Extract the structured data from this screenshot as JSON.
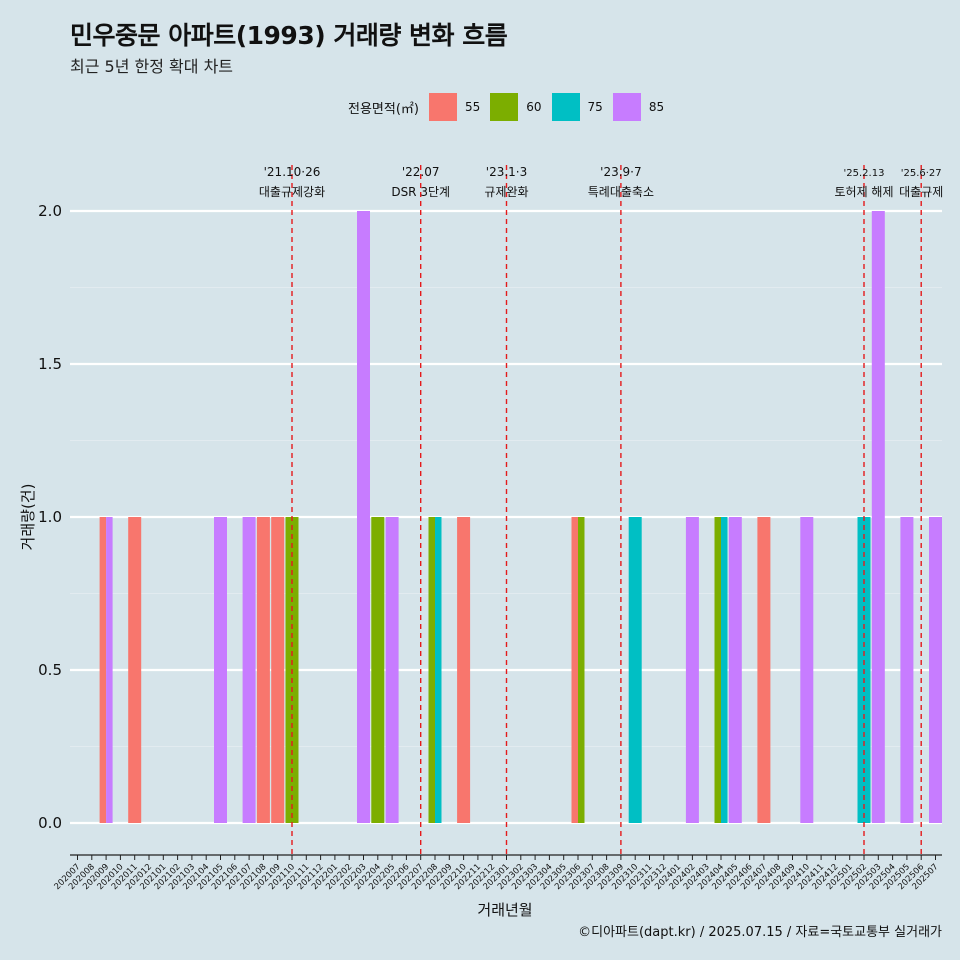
{
  "title": "민우중문 아파트(1993) 거래량 변화 흐름",
  "subtitle": "최근 5년 한정 확대 차트",
  "caption": "©디아파트(dapt.kr) / 2025.07.15 / 자료=국토교통부 실거래가",
  "legend": {
    "title": "전용면적(㎡)",
    "items": [
      {
        "label": "55",
        "color": "#f8766d"
      },
      {
        "label": "60",
        "color": "#7cae00"
      },
      {
        "label": "75",
        "color": "#00bfc4"
      },
      {
        "label": "85",
        "color": "#c77cff"
      }
    ]
  },
  "chart_data": {
    "type": "bar",
    "xlabel": "거래년월",
    "ylabel": "거래량(건)",
    "ylim": [
      0,
      2
    ],
    "yticks": [
      "0.0",
      "0.5",
      "1.0",
      "1.5",
      "2.0"
    ],
    "grid": true,
    "legend_position": "top",
    "categories": [
      "202007",
      "202008",
      "202009",
      "202010",
      "202011",
      "202012",
      "202101",
      "202102",
      "202103",
      "202104",
      "202105",
      "202106",
      "202107",
      "202108",
      "202109",
      "202110",
      "202111",
      "202112",
      "202201",
      "202202",
      "202203",
      "202204",
      "202205",
      "202206",
      "202207",
      "202208",
      "202209",
      "202210",
      "202211",
      "202212",
      "202301",
      "202302",
      "202303",
      "202304",
      "202305",
      "202306",
      "202307",
      "202308",
      "202309",
      "202310",
      "202311",
      "202312",
      "202401",
      "202402",
      "202403",
      "202404",
      "202405",
      "202406",
      "202407",
      "202408",
      "202409",
      "202410",
      "202411",
      "202412",
      "202501",
      "202502",
      "202503",
      "202504",
      "202505",
      "202506",
      "202507"
    ],
    "series": [
      {
        "name": "55",
        "color": "#f8766d",
        "points": [
          [
            "202009",
            1
          ],
          [
            "202011",
            1
          ],
          [
            "202108",
            1
          ],
          [
            "202109",
            1
          ],
          [
            "202210",
            1
          ],
          [
            "202306",
            1
          ],
          [
            "202407",
            1
          ]
        ]
      },
      {
        "name": "60",
        "color": "#7cae00",
        "points": [
          [
            "202110",
            1
          ],
          [
            "202204",
            1
          ],
          [
            "202208",
            1
          ],
          [
            "202306",
            1
          ],
          [
            "202404",
            1
          ]
        ]
      },
      {
        "name": "75",
        "color": "#00bfc4",
        "points": [
          [
            "202208",
            1
          ],
          [
            "202310",
            1
          ],
          [
            "202404",
            1
          ],
          [
            "202502",
            1
          ]
        ]
      },
      {
        "name": "85",
        "color": "#c77cff",
        "points": [
          [
            "202009",
            1
          ],
          [
            "202105",
            1
          ],
          [
            "202107",
            1
          ],
          [
            "202203",
            2
          ],
          [
            "202205",
            1
          ],
          [
            "202402",
            1
          ],
          [
            "202405",
            1
          ],
          [
            "202410",
            1
          ],
          [
            "202503",
            2
          ],
          [
            "202505",
            1
          ],
          [
            "202507",
            1
          ]
        ]
      }
    ],
    "events": [
      {
        "month": "202110",
        "date": "'21.10·26",
        "label": "대출규제강화"
      },
      {
        "month": "202207",
        "date": "'22.07",
        "label": "DSR 3단계"
      },
      {
        "month": "202301",
        "date": "'23.1·3",
        "label": "규제완화"
      },
      {
        "month": "202309",
        "date": "'23.9·7",
        "label": "특례대출축소"
      },
      {
        "month": "202502",
        "date": "'25.2.13",
        "label": "토허제 해제"
      },
      {
        "month": "202506",
        "date": "'25.6·27",
        "label": "대출규제"
      }
    ]
  }
}
